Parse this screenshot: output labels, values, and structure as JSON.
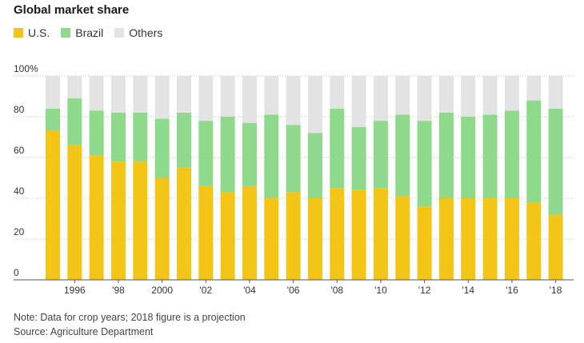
{
  "chart_data": {
    "type": "bar",
    "stacked": true,
    "title": "Global market share",
    "x": [
      1995,
      1996,
      1997,
      1998,
      1999,
      2000,
      2001,
      2002,
      2003,
      2004,
      2005,
      2006,
      2007,
      2008,
      2009,
      2010,
      2011,
      2012,
      2013,
      2014,
      2015,
      2016,
      2017,
      2018
    ],
    "x_tick_labels": [
      {
        "x": 1996,
        "label": "1996"
      },
      {
        "x": 1998,
        "label": "'98"
      },
      {
        "x": 2000,
        "label": "2000"
      },
      {
        "x": 2002,
        "label": "'02"
      },
      {
        "x": 2004,
        "label": "'04"
      },
      {
        "x": 2006,
        "label": "'06"
      },
      {
        "x": 2008,
        "label": "'08"
      },
      {
        "x": 2010,
        "label": "'10"
      },
      {
        "x": 2012,
        "label": "'12"
      },
      {
        "x": 2014,
        "label": "'14"
      },
      {
        "x": 2016,
        "label": "'16"
      },
      {
        "x": 2018,
        "label": "'18"
      }
    ],
    "y_ticks": [
      0,
      20,
      40,
      60,
      80,
      100
    ],
    "y_tick_labels": [
      "0",
      "20",
      "40",
      "60",
      "80",
      "100%"
    ],
    "ylim": [
      0,
      100
    ],
    "series": [
      {
        "name": "U.S.",
        "color": "#f2c517",
        "values": [
          73,
          66,
          61,
          58,
          58,
          50,
          55,
          46,
          43,
          46,
          40,
          43,
          40,
          45,
          44,
          45,
          41,
          36,
          40,
          40,
          40,
          40,
          38,
          32
        ]
      },
      {
        "name": "Brazil",
        "color": "#8ed98c",
        "values": [
          11,
          23,
          22,
          24,
          24,
          29,
          27,
          32,
          37,
          31,
          41,
          33,
          32,
          39,
          31,
          33,
          40,
          42,
          42,
          40,
          41,
          43,
          50,
          52
        ]
      },
      {
        "name": "Others",
        "color": "#e3e3e3",
        "values": [
          16,
          11,
          17,
          18,
          18,
          21,
          18,
          22,
          20,
          23,
          19,
          24,
          28,
          16,
          25,
          22,
          19,
          22,
          18,
          20,
          19,
          17,
          12,
          16
        ]
      }
    ],
    "legend": "top-left",
    "grid": true
  },
  "notes": {
    "note": "Note: Data for crop years; 2018 figure is a projection",
    "source": "Source: Agriculture Department"
  }
}
